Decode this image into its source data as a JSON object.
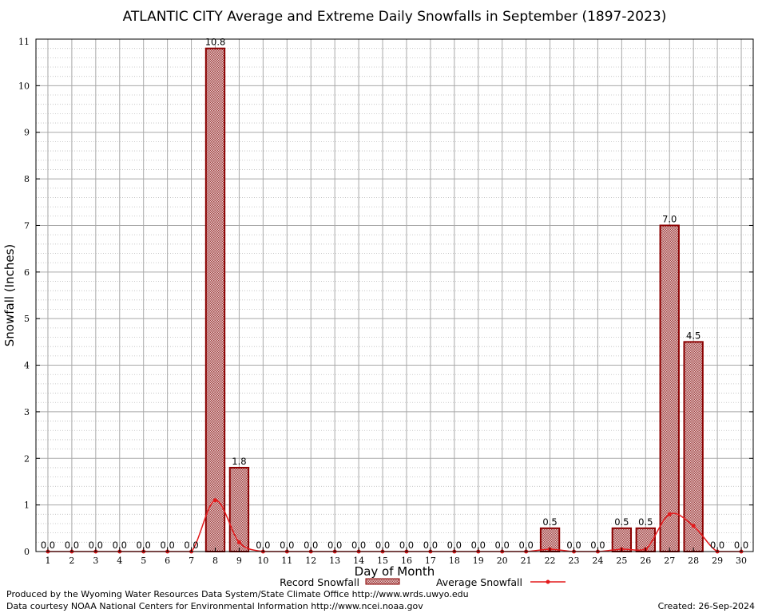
{
  "chart_data": {
    "type": "bar",
    "title": "ATLANTIC CITY Average and Extreme Daily Snowfalls in September (1897-2023)",
    "xlabel": "Day of Month",
    "ylabel": "Snowfall (Inches)",
    "ylim": [
      0,
      11
    ],
    "yticks": [
      0,
      1,
      2,
      3,
      4,
      5,
      6,
      7,
      8,
      9,
      10,
      11
    ],
    "grid": true,
    "legend_position": "bottom",
    "categories": [
      1,
      2,
      3,
      4,
      5,
      6,
      7,
      8,
      9,
      10,
      11,
      12,
      13,
      14,
      15,
      16,
      17,
      18,
      19,
      20,
      21,
      22,
      23,
      24,
      25,
      26,
      27,
      28,
      29,
      30
    ],
    "series": [
      {
        "name": "Record Snowfall",
        "type": "bar",
        "color": "#8b0000",
        "values": [
          0,
          0,
          0,
          0,
          0,
          0,
          0,
          10.8,
          1.8,
          0,
          0,
          0,
          0,
          0,
          0,
          0,
          0,
          0,
          0,
          0,
          0,
          0.5,
          0,
          0,
          0.5,
          0.5,
          7.0,
          4.5,
          0,
          0
        ],
        "labels": [
          "0.0",
          "0.0",
          "0.0",
          "0.0",
          "0.0",
          "0.0",
          "0.0",
          "10.8",
          "1.8",
          "0.0",
          "0.0",
          "0.0",
          "0.0",
          "0.0",
          "0.0",
          "0.0",
          "0.0",
          "0.0",
          "0.0",
          "0.0",
          "0.0",
          "0.5",
          "0.0",
          "0.0",
          "0.5",
          "0.5",
          "7.0",
          "4.5",
          "0.0",
          "0.0"
        ]
      },
      {
        "name": "Average Snowfall",
        "type": "line",
        "color": "#e41a1c",
        "values": [
          0,
          0,
          0,
          0,
          0,
          0,
          0,
          1.1,
          0.2,
          0,
          0,
          0,
          0,
          0,
          0,
          0,
          0,
          0,
          0,
          0,
          0,
          0.05,
          0,
          0,
          0.05,
          0.05,
          0.8,
          0.55,
          0,
          0
        ]
      }
    ]
  },
  "footer": {
    "produced_by": "Produced by the Wyoming Water Resources Data System/State Climate Office http://www.wrds.uwyo.edu",
    "courtesy": "Data courtesy NOAA National Centers for Environmental Information http://www.ncei.noaa.gov",
    "created": "Created: 26-Sep-2024"
  }
}
